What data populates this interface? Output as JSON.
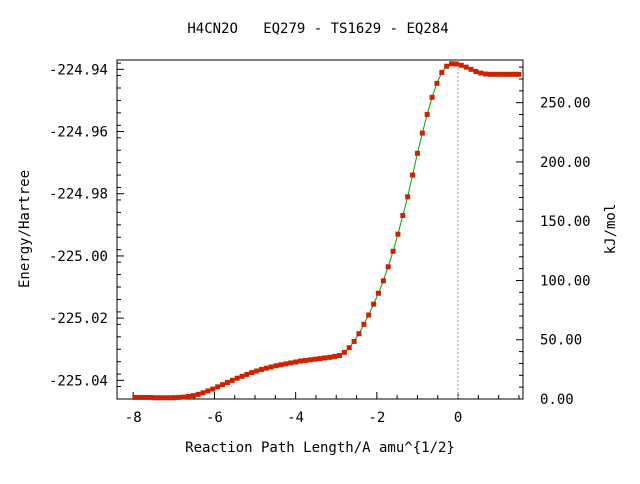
{
  "chart_data": {
    "type": "line",
    "title": "H4CN2O   EQ279 - TS1629 - EQ284",
    "xlabel": "Reaction Path Length/A amu^{1/2}",
    "ylabel": "Energy/Hartree",
    "y2label": "kJ/mol",
    "xlim": [
      -8.4,
      1.6
    ],
    "ylim": [
      -225.046,
      -224.937
    ],
    "y2lim": [
      0.0,
      286.0
    ],
    "x_ticks": [
      -8,
      -6,
      -4,
      -2,
      0
    ],
    "x_tick_labels": [
      "-8",
      "-6",
      "-4",
      "-2",
      "0"
    ],
    "y_ticks": [
      -224.94,
      -224.96,
      -224.98,
      -225.0,
      -225.02,
      -225.04
    ],
    "y_tick_labels": [
      "-224.94",
      "-224.96",
      "-224.98",
      "-225.00",
      "-225.02",
      "-225.04"
    ],
    "y2_ticks": [
      250,
      200,
      150,
      100,
      50,
      0
    ],
    "y2_tick_labels": [
      "250.00",
      "200.00",
      "150.00",
      "100.00",
      "50.00",
      "0.00"
    ],
    "ts_marker_x": 0.0,
    "grid": false,
    "colors": {
      "line": "#00a000",
      "points": "#cc2200",
      "ts_line": "#999999",
      "frame": "#000000"
    },
    "series": [
      {
        "x": [
          -7.96,
          -7.84,
          -7.72,
          -7.6,
          -7.48,
          -7.36,
          -7.24,
          -7.12,
          -7.0,
          -6.88,
          -6.76,
          -6.64,
          -6.52,
          -6.4,
          -6.28,
          -6.16,
          -6.04,
          -5.92,
          -5.8,
          -5.68,
          -5.56,
          -5.44,
          -5.32,
          -5.2,
          -5.08,
          -4.96,
          -4.84,
          -4.72,
          -4.6,
          -4.48,
          -4.36,
          -4.24,
          -4.12,
          -4.0,
          -3.88,
          -3.76,
          -3.64,
          -3.52,
          -3.4,
          -3.28,
          -3.16,
          -3.04,
          -2.92,
          -2.8,
          -2.68,
          -2.56,
          -2.44,
          -2.32,
          -2.2,
          -2.08,
          -1.96,
          -1.84,
          -1.72,
          -1.6,
          -1.48,
          -1.36,
          -1.24,
          -1.12,
          -1.0,
          -0.88,
          -0.76,
          -0.64,
          -0.52,
          -0.4,
          -0.28,
          -0.16,
          -0.04,
          0.08,
          0.2,
          0.32,
          0.44,
          0.56,
          0.68,
          0.8,
          0.92,
          1.04,
          1.16,
          1.28,
          1.4,
          1.5
        ],
        "y": [
          -225.0455,
          -225.0455,
          -225.0455,
          -225.0455,
          -225.0456,
          -225.0456,
          -225.0456,
          -225.0456,
          -225.0456,
          -225.0455,
          -225.0454,
          -225.0452,
          -225.0449,
          -225.0445,
          -225.044,
          -225.0434,
          -225.0428,
          -225.0421,
          -225.0414,
          -225.0407,
          -225.04,
          -225.0393,
          -225.0387,
          -225.0381,
          -225.0375,
          -225.037,
          -225.0365,
          -225.0361,
          -225.0357,
          -225.0353,
          -225.035,
          -225.0347,
          -225.0344,
          -225.0341,
          -225.0338,
          -225.0336,
          -225.0334,
          -225.0332,
          -225.033,
          -225.0328,
          -225.0326,
          -225.0323,
          -225.032,
          -225.031,
          -225.0295,
          -225.0275,
          -225.025,
          -225.022,
          -225.019,
          -225.0155,
          -225.012,
          -225.008,
          -225.0035,
          -224.9985,
          -224.993,
          -224.987,
          -224.981,
          -224.974,
          -224.967,
          -224.9605,
          -224.9545,
          -224.949,
          -224.9445,
          -224.941,
          -224.939,
          -224.9382,
          -224.9383,
          -224.9387,
          -224.9393,
          -224.94,
          -224.9407,
          -224.9412,
          -224.9415,
          -224.9416,
          -224.9416,
          -224.9416,
          -224.9416,
          -224.9416,
          -224.9416,
          -224.9416
        ]
      }
    ]
  }
}
